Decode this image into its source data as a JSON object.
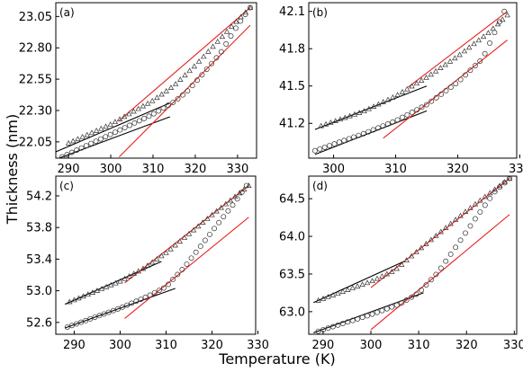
{
  "figure": {
    "xlabel": "Temperature (K)",
    "ylabel": "Thickness (nm)"
  },
  "chart_data": [
    {
      "type": "scatter",
      "panel_label": "(a)",
      "xlim": [
        287,
        334.5
      ],
      "ylim": [
        21.92,
        23.16
      ],
      "xticks": [
        290,
        300,
        310,
        320,
        330
      ],
      "yticks": [
        22.05,
        22.3,
        22.55,
        22.8,
        23.05
      ],
      "ytick_labels": [
        "22.05",
        "22.30",
        "22.55",
        "22.80",
        "23.05"
      ],
      "series": [
        {
          "marker": "triangle",
          "x_start": 290,
          "x_end": 333,
          "n": 40,
          "y": [
            [
              290,
              22.04
            ],
            [
              300,
              22.19
            ],
            [
              310,
              22.38
            ],
            [
              315,
              22.5
            ],
            [
              320,
              22.66
            ],
            [
              325,
              22.84
            ],
            [
              330,
              23.02
            ],
            [
              333,
              23.12
            ]
          ]
        },
        {
          "marker": "circle",
          "x_start": 288.5,
          "x_end": 333,
          "n": 40,
          "y": [
            [
              288.5,
              21.93
            ],
            [
              300,
              22.11
            ],
            [
              310,
              22.27
            ],
            [
              315,
              22.37
            ],
            [
              318,
              22.45
            ],
            [
              322,
              22.6
            ],
            [
              326,
              22.76
            ],
            [
              330,
              22.98
            ],
            [
              333,
              23.12
            ]
          ]
        }
      ],
      "fits": [
        {
          "color": "black",
          "x1": 287,
          "y1": 21.97,
          "x2": 314,
          "y2": 22.36
        },
        {
          "color": "black",
          "x1": 287,
          "y1": 21.91,
          "x2": 314,
          "y2": 22.25
        },
        {
          "color": "red",
          "x1": 302,
          "y1": 22.22,
          "x2": 333,
          "y2": 23.12
        },
        {
          "color": "red",
          "x1": 302,
          "y1": 21.93,
          "x2": 333,
          "y2": 22.98
        }
      ]
    },
    {
      "type": "scatter",
      "panel_label": "(b)",
      "xlim": [
        296,
        329.5
      ],
      "ylim": [
        40.92,
        42.17
      ],
      "xticks": [
        300,
        310,
        320,
        330
      ],
      "yticks": [
        41.2,
        41.5,
        41.8,
        42.1
      ],
      "ytick_labels": [
        "41.2",
        "41.5",
        "41.8",
        "42.1"
      ],
      "series": [
        {
          "marker": "triangle",
          "x_start": 298,
          "x_end": 328,
          "n": 40,
          "y": [
            [
              298,
              41.18
            ],
            [
              305,
              41.3
            ],
            [
              310,
              41.42
            ],
            [
              315,
              41.57
            ],
            [
              320,
              41.74
            ],
            [
              325,
              41.93
            ],
            [
              328,
              42.07
            ]
          ]
        },
        {
          "marker": "circle",
          "x_start": 297,
          "x_end": 327.5,
          "n": 40,
          "y": [
            [
              297,
              40.98
            ],
            [
              305,
              41.12
            ],
            [
              310,
              41.22
            ],
            [
              315,
              41.35
            ],
            [
              320,
              41.53
            ],
            [
              324,
              41.72
            ],
            [
              327.5,
              42.1
            ]
          ]
        }
      ],
      "fits": [
        {
          "color": "black",
          "x1": 297,
          "y1": 41.15,
          "x2": 315,
          "y2": 41.5
        },
        {
          "color": "black",
          "x1": 297,
          "y1": 40.95,
          "x2": 315,
          "y2": 41.3
        },
        {
          "color": "red",
          "x1": 312,
          "y1": 41.49,
          "x2": 328,
          "y2": 42.1
        },
        {
          "color": "red",
          "x1": 308,
          "y1": 41.08,
          "x2": 328,
          "y2": 41.87
        }
      ]
    },
    {
      "type": "scatter",
      "panel_label": "(c)",
      "xlim": [
        286,
        329.5
      ],
      "ylim": [
        52.45,
        54.45
      ],
      "xticks": [
        290,
        300,
        310,
        320,
        330
      ],
      "yticks": [
        52.6,
        53.0,
        53.4,
        53.8,
        54.2
      ],
      "ytick_labels": [
        "52.6",
        "53.0",
        "53.4",
        "53.8",
        "54.2"
      ],
      "series": [
        {
          "marker": "triangle",
          "x_start": 289,
          "x_end": 328,
          "n": 40,
          "y": [
            [
              289,
              52.86
            ],
            [
              300,
              53.12
            ],
            [
              305,
              53.28
            ],
            [
              310,
              53.48
            ],
            [
              315,
              53.72
            ],
            [
              320,
              53.96
            ],
            [
              325,
              54.19
            ],
            [
              328,
              54.33
            ]
          ]
        },
        {
          "marker": "circle",
          "x_start": 288.5,
          "x_end": 327.5,
          "n": 40,
          "y": [
            [
              288.5,
              52.54
            ],
            [
              300,
              52.78
            ],
            [
              306,
              52.93
            ],
            [
              310,
              53.05
            ],
            [
              314,
              53.3
            ],
            [
              318,
              53.6
            ],
            [
              322,
              53.9
            ],
            [
              325,
              54.12
            ],
            [
              327.5,
              54.33
            ]
          ]
        }
      ],
      "fits": [
        {
          "color": "black",
          "x1": 288,
          "y1": 52.83,
          "x2": 309,
          "y2": 53.37
        },
        {
          "color": "black",
          "x1": 288,
          "y1": 52.53,
          "x2": 312,
          "y2": 53.03
        },
        {
          "color": "red",
          "x1": 301,
          "y1": 53.1,
          "x2": 328,
          "y2": 54.33
        },
        {
          "color": "red",
          "x1": 301,
          "y1": 52.65,
          "x2": 328,
          "y2": 53.93
        }
      ]
    },
    {
      "type": "scatter",
      "panel_label": "(d)",
      "xlim": [
        287,
        330.5
      ],
      "ylim": [
        62.7,
        64.8
      ],
      "xticks": [
        290,
        300,
        310,
        320,
        330
      ],
      "yticks": [
        63.0,
        63.5,
        64.0,
        64.5
      ],
      "ytick_labels": [
        "63.0",
        "63.5",
        "64.0",
        "64.5"
      ],
      "series": [
        {
          "marker": "triangle",
          "x_start": 289,
          "x_end": 329,
          "n": 40,
          "y": [
            [
              289,
              63.15
            ],
            [
              300,
              63.4
            ],
            [
              305,
              63.55
            ],
            [
              310,
              63.82
            ],
            [
              315,
              64.08
            ],
            [
              320,
              64.34
            ],
            [
              325,
              64.58
            ],
            [
              329,
              64.77
            ]
          ]
        },
        {
          "marker": "circle",
          "x_start": 289,
          "x_end": 329,
          "n": 40,
          "y": [
            [
              289,
              62.74
            ],
            [
              300,
              62.96
            ],
            [
              306,
              63.1
            ],
            [
              310,
              63.25
            ],
            [
              314,
              63.52
            ],
            [
              318,
              63.88
            ],
            [
              322,
              64.25
            ],
            [
              326,
              64.6
            ],
            [
              329,
              64.77
            ]
          ]
        }
      ],
      "fits": [
        {
          "color": "black",
          "x1": 288,
          "y1": 63.12,
          "x2": 307,
          "y2": 63.67
        },
        {
          "color": "black",
          "x1": 288,
          "y1": 62.72,
          "x2": 311,
          "y2": 63.25
        },
        {
          "color": "red",
          "x1": 300,
          "y1": 63.32,
          "x2": 329,
          "y2": 64.77
        },
        {
          "color": "red",
          "x1": 300,
          "y1": 62.76,
          "x2": 329,
          "y2": 64.29
        }
      ]
    }
  ]
}
